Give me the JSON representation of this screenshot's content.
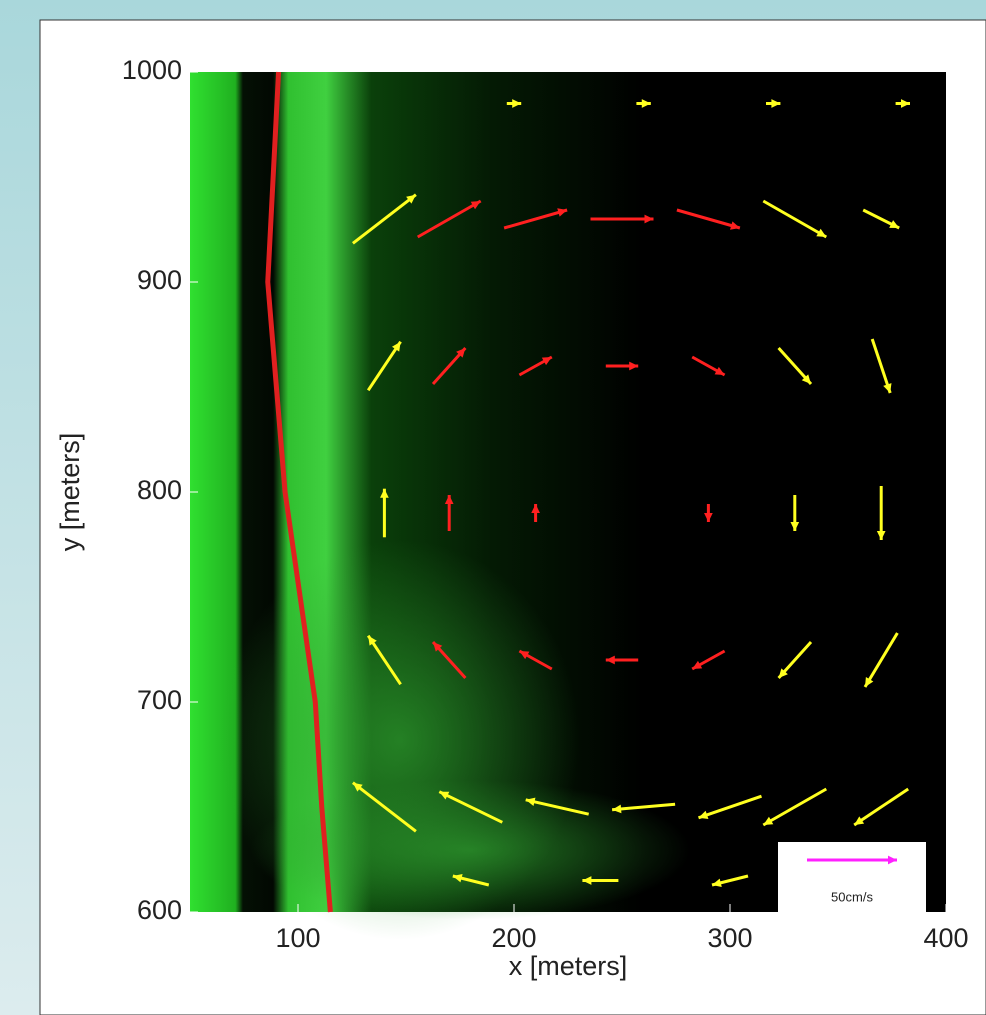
{
  "chart_data": {
    "type": "quiver",
    "xlabel": "x [meters]",
    "ylabel": "y [meters]",
    "xlim": [
      50,
      400
    ],
    "ylim": [
      600,
      1000
    ],
    "xticks": [
      100,
      200,
      300,
      400
    ],
    "yticks": [
      600,
      700,
      800,
      900,
      1000
    ],
    "line": {
      "color": "#e02020",
      "x": [
        91,
        86,
        94,
        101,
        108,
        111,
        115
      ],
      "y": [
        1000,
        900,
        800,
        750,
        700,
        650,
        600
      ]
    },
    "series": [
      {
        "color": "#ff2020",
        "x": [
          170,
          210,
          250,
          290,
          170,
          210,
          250,
          290,
          170,
          210,
          290,
          170,
          210,
          250,
          290
        ],
        "y": [
          930,
          930,
          930,
          930,
          860,
          860,
          860,
          860,
          790,
          790,
          790,
          720,
          720,
          720,
          720
        ],
        "u": [
          35,
          35,
          35,
          35,
          18,
          18,
          18,
          18,
          0,
          0,
          0,
          -18,
          -18,
          -18,
          -18
        ],
        "v": [
          20,
          10,
          0,
          -10,
          20,
          10,
          0,
          -10,
          20,
          10,
          -10,
          20,
          10,
          0,
          -10
        ]
      },
      {
        "color": "#ffff20",
        "x": [
          140,
          140,
          140,
          140,
          140,
          330,
          330,
          330,
          330,
          330,
          370,
          370,
          370,
          370,
          370,
          180,
          220,
          260,
          300,
          200,
          260,
          320,
          380,
          180,
          240,
          300,
          360
        ],
        "y": [
          930,
          860,
          790,
          720,
          650,
          930,
          860,
          790,
          720,
          650,
          930,
          860,
          790,
          720,
          650,
          650,
          650,
          650,
          650,
          985,
          985,
          985,
          985,
          615,
          615,
          615,
          615
        ],
        "u": [
          35,
          18,
          0,
          -18,
          -35,
          35,
          18,
          0,
          -18,
          -35,
          20,
          10,
          0,
          -18,
          -30,
          -35,
          -35,
          -35,
          -35,
          8,
          8,
          8,
          8,
          -20,
          -20,
          -20,
          -15
        ],
        "v": [
          27,
          27,
          27,
          27,
          27,
          -20,
          -20,
          -20,
          -20,
          -20,
          -10,
          -30,
          -30,
          -30,
          -20,
          17,
          8,
          -3,
          -12,
          0,
          0,
          0,
          0,
          5,
          0,
          -5,
          -5
        ]
      }
    ],
    "scale": {
      "value": 50,
      "label": "50cm/s",
      "color": "#ff20ff"
    }
  }
}
